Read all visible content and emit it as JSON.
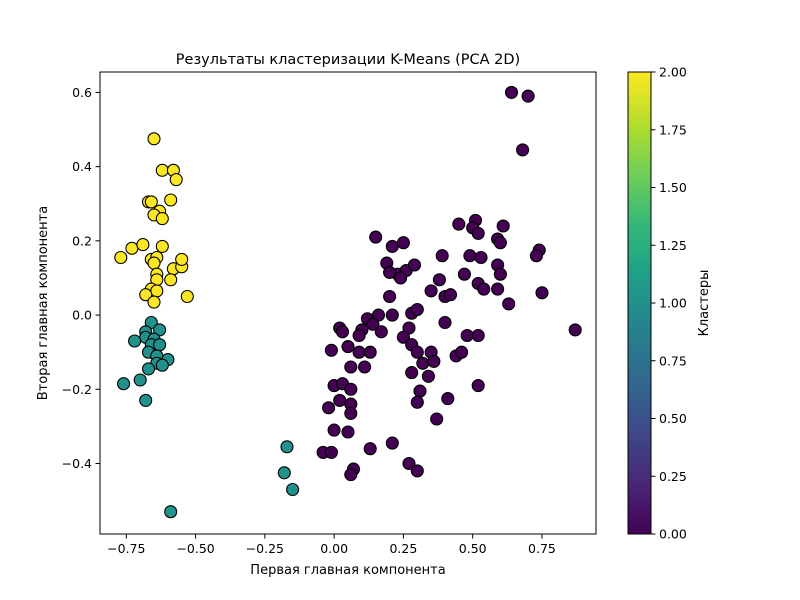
{
  "chart_data": {
    "type": "scatter",
    "title": "Результаты кластеризации K-Means (PCA 2D)",
    "xlabel": "Первая главная компонента",
    "ylabel": "Вторая главная компонента",
    "xlim": [
      -0.845,
      0.945
    ],
    "ylim": [
      -0.59,
      0.655
    ],
    "grid": false,
    "marker_edge_color": "#000000",
    "x_ticks": [
      {
        "value": -0.75,
        "label": "−0.75"
      },
      {
        "value": -0.5,
        "label": "−0.50"
      },
      {
        "value": -0.25,
        "label": "−0.25"
      },
      {
        "value": 0.0,
        "label": "0.00"
      },
      {
        "value": 0.25,
        "label": "0.25"
      },
      {
        "value": 0.5,
        "label": "0.50"
      },
      {
        "value": 0.75,
        "label": "0.75"
      }
    ],
    "y_ticks": [
      {
        "value": -0.4,
        "label": "−0.4"
      },
      {
        "value": -0.2,
        "label": "−0.2"
      },
      {
        "value": 0.0,
        "label": "0.0"
      },
      {
        "value": 0.2,
        "label": "0.2"
      },
      {
        "value": 0.4,
        "label": "0.4"
      },
      {
        "value": 0.6,
        "label": "0.6"
      }
    ],
    "colorbar": {
      "label": "Кластеры",
      "range": [
        0,
        2
      ],
      "colormap": "viridis",
      "stops": [
        "#440154",
        "#482878",
        "#3e4989",
        "#31688e",
        "#26828e",
        "#1f9e89",
        "#35b779",
        "#6ece58",
        "#b5de2b",
        "#fde725"
      ],
      "ticks": [
        {
          "value": 0.0,
          "label": "0.00"
        },
        {
          "value": 0.25,
          "label": "0.25"
        },
        {
          "value": 0.5,
          "label": "0.50"
        },
        {
          "value": 0.75,
          "label": "0.75"
        },
        {
          "value": 1.0,
          "label": "1.00"
        },
        {
          "value": 1.25,
          "label": "1.25"
        },
        {
          "value": 1.5,
          "label": "1.50"
        },
        {
          "value": 1.75,
          "label": "1.75"
        },
        {
          "value": 2.0,
          "label": "2.00"
        }
      ]
    },
    "series": [
      {
        "cluster": 0,
        "color": "#440154",
        "points": [
          [
            0.64,
            0.6
          ],
          [
            0.7,
            0.59
          ],
          [
            0.68,
            0.445
          ],
          [
            0.45,
            0.245
          ],
          [
            0.51,
            0.255
          ],
          [
            0.5,
            0.235
          ],
          [
            0.52,
            0.22
          ],
          [
            0.61,
            0.24
          ],
          [
            0.59,
            0.205
          ],
          [
            0.6,
            0.195
          ],
          [
            0.74,
            0.175
          ],
          [
            0.73,
            0.16
          ],
          [
            0.39,
            0.16
          ],
          [
            0.49,
            0.16
          ],
          [
            0.53,
            0.155
          ],
          [
            0.59,
            0.135
          ],
          [
            0.47,
            0.11
          ],
          [
            0.6,
            0.11
          ],
          [
            0.52,
            0.085
          ],
          [
            0.54,
            0.07
          ],
          [
            0.59,
            0.07
          ],
          [
            0.63,
            0.03
          ],
          [
            0.75,
            0.06
          ],
          [
            0.4,
            0.05
          ],
          [
            0.42,
            0.055
          ],
          [
            0.15,
            0.21
          ],
          [
            0.21,
            0.185
          ],
          [
            0.25,
            0.195
          ],
          [
            0.19,
            0.14
          ],
          [
            0.23,
            0.11
          ],
          [
            0.26,
            0.12
          ],
          [
            0.24,
            0.1
          ],
          [
            0.29,
            0.135
          ],
          [
            0.2,
            0.115
          ],
          [
            0.35,
            0.065
          ],
          [
            0.38,
            0.095
          ],
          [
            0.2,
            0.05
          ],
          [
            0.16,
            0.0
          ],
          [
            0.21,
            0.0
          ],
          [
            0.28,
            0.005
          ],
          [
            0.3,
            0.015
          ],
          [
            0.12,
            -0.01
          ],
          [
            0.14,
            -0.025
          ],
          [
            0.17,
            -0.045
          ],
          [
            0.1,
            -0.04
          ],
          [
            0.27,
            -0.035
          ],
          [
            0.02,
            -0.035
          ],
          [
            0.03,
            -0.045
          ],
          [
            0.09,
            -0.055
          ],
          [
            0.25,
            -0.06
          ],
          [
            0.28,
            -0.08
          ],
          [
            0.4,
            -0.02
          ],
          [
            0.48,
            -0.055
          ],
          [
            0.52,
            -0.055
          ],
          [
            0.05,
            -0.085
          ],
          [
            0.09,
            -0.1
          ],
          [
            0.13,
            -0.1
          ],
          [
            -0.01,
            -0.095
          ],
          [
            0.35,
            -0.1
          ],
          [
            0.3,
            -0.1
          ],
          [
            0.32,
            -0.13
          ],
          [
            0.36,
            -0.125
          ],
          [
            0.44,
            -0.11
          ],
          [
            0.46,
            -0.1
          ],
          [
            0.06,
            -0.14
          ],
          [
            0.11,
            -0.14
          ],
          [
            0.28,
            -0.155
          ],
          [
            0.34,
            -0.165
          ],
          [
            0.0,
            -0.19
          ],
          [
            0.03,
            -0.185
          ],
          [
            0.06,
            -0.2
          ],
          [
            0.31,
            -0.205
          ],
          [
            0.41,
            -0.225
          ],
          [
            0.52,
            -0.19
          ],
          [
            -0.02,
            -0.25
          ],
          [
            0.02,
            -0.23
          ],
          [
            0.06,
            -0.24
          ],
          [
            0.06,
            -0.265
          ],
          [
            0.3,
            -0.235
          ],
          [
            0.37,
            -0.28
          ],
          [
            0.0,
            -0.31
          ],
          [
            0.05,
            -0.315
          ],
          [
            0.13,
            -0.36
          ],
          [
            0.21,
            -0.345
          ],
          [
            -0.04,
            -0.37
          ],
          [
            -0.01,
            -0.37
          ],
          [
            0.27,
            -0.4
          ],
          [
            0.3,
            -0.42
          ],
          [
            0.07,
            -0.415
          ],
          [
            0.06,
            -0.43
          ],
          [
            0.87,
            -0.04
          ]
        ]
      },
      {
        "cluster": 1,
        "color": "#21918c",
        "points": [
          [
            -0.66,
            -0.02
          ],
          [
            -0.63,
            -0.04
          ],
          [
            -0.68,
            -0.045
          ],
          [
            -0.68,
            -0.06
          ],
          [
            -0.65,
            -0.065
          ],
          [
            -0.72,
            -0.07
          ],
          [
            -0.66,
            -0.08
          ],
          [
            -0.63,
            -0.08
          ],
          [
            -0.67,
            -0.1
          ],
          [
            -0.64,
            -0.11
          ],
          [
            -0.6,
            -0.12
          ],
          [
            -0.64,
            -0.13
          ],
          [
            -0.62,
            -0.135
          ],
          [
            -0.67,
            -0.145
          ],
          [
            -0.76,
            -0.185
          ],
          [
            -0.7,
            -0.175
          ],
          [
            -0.68,
            -0.23
          ],
          [
            -0.17,
            -0.355
          ],
          [
            -0.18,
            -0.425
          ],
          [
            -0.15,
            -0.47
          ],
          [
            -0.59,
            -0.53
          ]
        ]
      },
      {
        "cluster": 2,
        "color": "#fde725",
        "points": [
          [
            -0.65,
            0.475
          ],
          [
            -0.62,
            0.39
          ],
          [
            -0.58,
            0.39
          ],
          [
            -0.57,
            0.365
          ],
          [
            -0.59,
            0.31
          ],
          [
            -0.67,
            0.305
          ],
          [
            -0.66,
            0.305
          ],
          [
            -0.63,
            0.28
          ],
          [
            -0.65,
            0.27
          ],
          [
            -0.62,
            0.26
          ],
          [
            -0.73,
            0.18
          ],
          [
            -0.69,
            0.19
          ],
          [
            -0.62,
            0.185
          ],
          [
            -0.77,
            0.155
          ],
          [
            -0.66,
            0.15
          ],
          [
            -0.64,
            0.155
          ],
          [
            -0.65,
            0.14
          ],
          [
            -0.58,
            0.125
          ],
          [
            -0.55,
            0.13
          ],
          [
            -0.55,
            0.15
          ],
          [
            -0.64,
            0.11
          ],
          [
            -0.64,
            0.095
          ],
          [
            -0.59,
            0.095
          ],
          [
            -0.66,
            0.07
          ],
          [
            -0.64,
            0.065
          ],
          [
            -0.68,
            0.055
          ],
          [
            -0.53,
            0.05
          ],
          [
            -0.65,
            0.035
          ]
        ]
      }
    ]
  }
}
